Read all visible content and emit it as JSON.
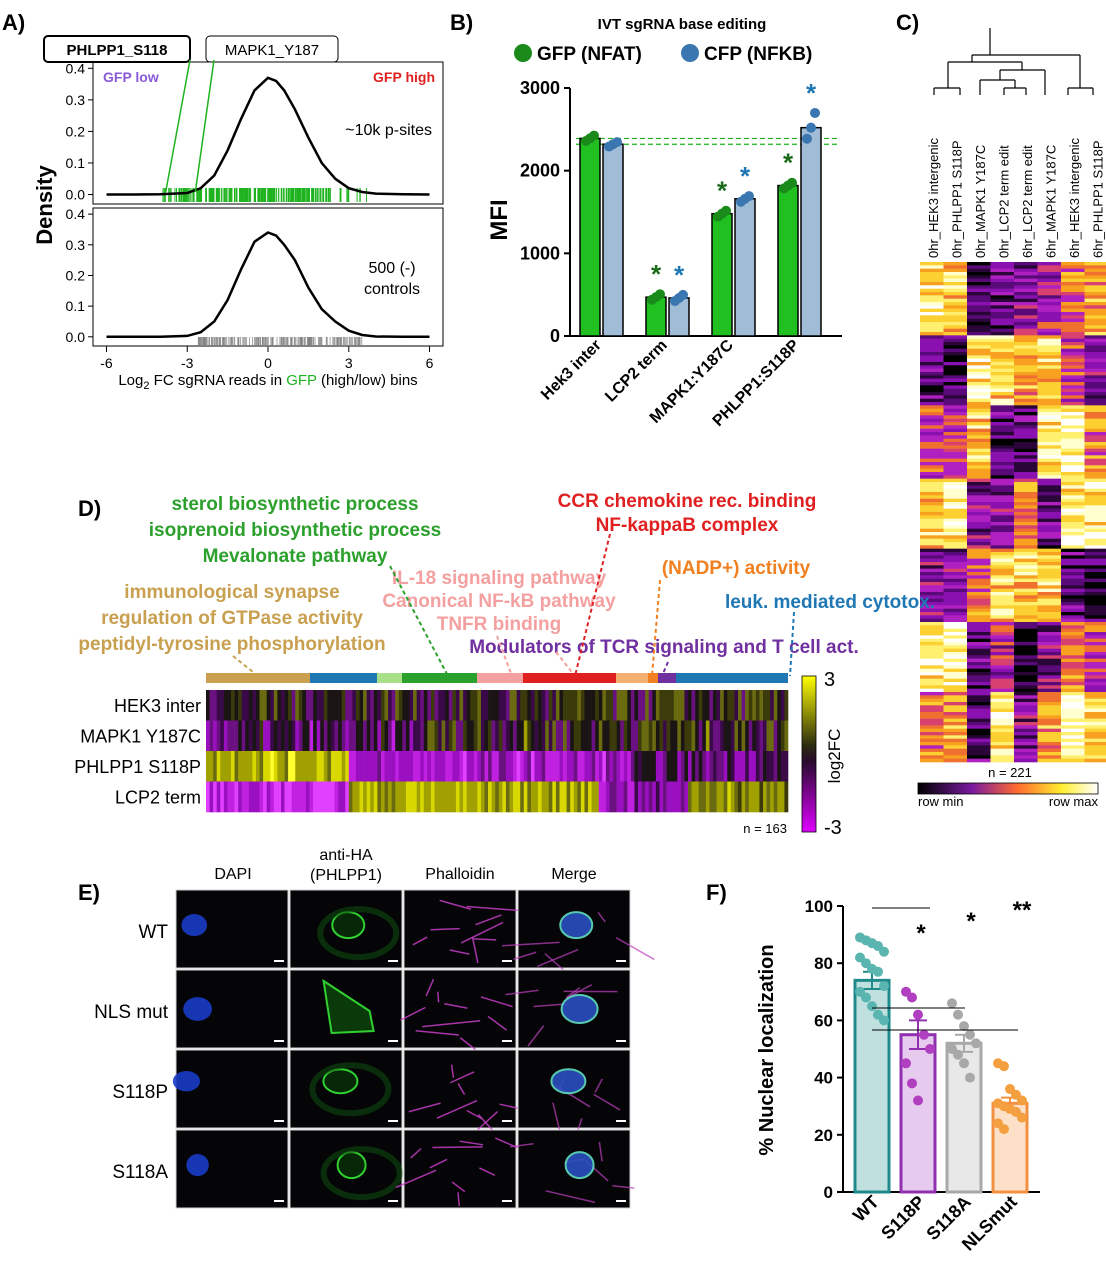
{
  "panels": {
    "a": "A)",
    "b": "B)",
    "c": "C)",
    "d": "D)",
    "e": "E)",
    "f": "F)"
  },
  "colors": {
    "green": "#1fb31f",
    "dark_green": "#1a6b1a",
    "blue": "#5a8ab8",
    "light_blue": "#9fbbd4",
    "purple": "#7030a0",
    "red": "#e02020",
    "tan": "#c8a050",
    "teal": "#1f78b4",
    "pink": "#f4a0a0",
    "orange": "#f08020",
    "wt": "#5ab4b0",
    "s118p": "#b040c0",
    "s118a": "#a8a8a8",
    "nlsmut": "#f5a040"
  },
  "chart_data": [
    {
      "id": "A_top",
      "type": "line",
      "title": "",
      "ylabel": "Density",
      "xlabel_prefix": "Log",
      "xlabel_sub": "2",
      "xlabel_mid": " FC sgRNA reads in ",
      "xlabel_green": "GFP",
      "xlabel_suffix": " (high/low) bins",
      "x": [
        -6,
        -5,
        -4,
        -3,
        -2.5,
        -2,
        -1.5,
        -1,
        -0.5,
        0,
        0.3,
        0.6,
        1,
        1.5,
        2,
        2.5,
        3,
        3.5,
        4,
        5,
        6
      ],
      "y": [
        0,
        0,
        0.001,
        0.005,
        0.02,
        0.06,
        0.14,
        0.24,
        0.33,
        0.37,
        0.36,
        0.33,
        0.27,
        0.18,
        0.1,
        0.05,
        0.02,
        0.008,
        0.003,
        0.001,
        0
      ],
      "xlim": [
        -6.5,
        6.5
      ],
      "ylim": [
        -0.03,
        0.42
      ],
      "yticks": [
        "0.0",
        "0.1",
        "0.2",
        "0.3",
        "0.4"
      ],
      "annotations": {
        "low": "GFP low",
        "high": "GFP high",
        "count": "~10k p-sites"
      },
      "callouts": [
        "PHLPP1_S118",
        "MAPK1_Y187"
      ],
      "callout_x": [
        -3.8,
        -2.7
      ],
      "rug_color": "#1fb31f"
    },
    {
      "id": "A_bottom",
      "type": "line",
      "x": [
        -6,
        -5,
        -4,
        -3,
        -2.5,
        -2,
        -1.5,
        -1,
        -0.5,
        0,
        0.3,
        0.6,
        1,
        1.5,
        2,
        2.5,
        3,
        3.5,
        4,
        5,
        6
      ],
      "y": [
        0,
        0,
        0,
        0.003,
        0.015,
        0.05,
        0.12,
        0.22,
        0.31,
        0.34,
        0.33,
        0.3,
        0.25,
        0.16,
        0.09,
        0.05,
        0.02,
        0.006,
        0.001,
        0,
        0
      ],
      "xlim": [
        -6.5,
        6.5
      ],
      "ylim": [
        -0.03,
        0.42
      ],
      "yticks": [
        "0.0",
        "0.1",
        "0.2",
        "0.3",
        "0.4"
      ],
      "xticks": [
        "-6",
        "-3",
        "0",
        "3",
        "6"
      ],
      "annotations": {
        "line1": "500 (-)",
        "line2": "controls"
      },
      "rug_color": "#808080"
    },
    {
      "id": "B",
      "type": "bar",
      "title": "IVT sgRNA base editing",
      "legend": [
        "GFP (NFAT)",
        "CFP (NFKB)"
      ],
      "ylabel": "MFI",
      "categories": [
        "Hek3 inter",
        "LCP2 term",
        "MAPK1:Y187C",
        "PHLPP1:S118P"
      ],
      "series": [
        {
          "name": "GFP (NFAT)",
          "values": [
            2390,
            470,
            1480,
            1820
          ],
          "sig": [
            false,
            true,
            true,
            true
          ]
        },
        {
          "name": "CFP (NFKB)",
          "values": [
            2320,
            460,
            1660,
            2520
          ],
          "sig": [
            false,
            true,
            true,
            true
          ]
        }
      ],
      "star": "*",
      "ylim": [
        0,
        3000
      ],
      "yticks": [
        "0",
        "1000",
        "2000",
        "3000"
      ],
      "ref_lines": [
        2390,
        2320
      ]
    },
    {
      "id": "C",
      "type": "heatmap",
      "columns": [
        "0hr_HEK3 intergenic",
        "0hr_PHLPP1 S118P",
        "0hr_MAPK1 Y187C",
        "0hr_LCP2 term edit",
        "6hr_LCP2 term edit",
        "6hr_MAPK1 Y187C",
        "6hr_HEK3 intergenic",
        "6hr_PHLPP1 S118P"
      ],
      "n_label": "n = 221",
      "scale_min": "row min",
      "scale_max": "row max"
    },
    {
      "id": "D",
      "type": "heatmap",
      "rows": [
        "HEK3 inter",
        "MAPK1 Y187C",
        "PHLPP1 S118P",
        "LCP2 term"
      ],
      "n_label": "n = 163",
      "scale_label": "log2FC",
      "scale_max": "3",
      "scale_min": "-3",
      "go_terms": [
        {
          "lines": [
            "sterol biosynthetic process",
            "isoprenoid biosynthetic process",
            "Mevalonate pathway"
          ],
          "color": "#2ca02c"
        },
        {
          "lines": [
            "CCR chemokine rec. binding",
            "NF-kappaB complex"
          ],
          "color": "#e02020"
        },
        {
          "lines": [
            "immunological synapse",
            "regulation of GTPase activity",
            "peptidyl-tyrosine phosphorylation"
          ],
          "color": "#c8a050"
        },
        {
          "lines": [
            "IL-18 signaling pathway",
            "Canonical NF-kB pathway",
            "TNFR binding"
          ],
          "color": "#f4a0a0"
        },
        {
          "lines": [
            "(NADP+) activity"
          ],
          "color": "#f08020"
        },
        {
          "lines": [
            "leuk. mediated cytotox."
          ],
          "color": "#1f78b4"
        },
        {
          "lines": [
            "Modulators of TCR signaling and T cell act."
          ],
          "color": "#7030a0"
        }
      ]
    },
    {
      "id": "F",
      "type": "bar",
      "ylabel": "% Nuclear localization",
      "categories": [
        "WT",
        "S118P",
        "S118A",
        "NLSmut"
      ],
      "values": [
        74,
        55,
        52,
        31
      ],
      "errors": [
        3,
        5,
        3,
        2
      ],
      "points": [
        [
          89,
          88,
          87,
          86,
          84,
          82,
          80,
          78,
          77,
          72,
          70,
          68,
          65,
          62,
          60
        ],
        [
          70,
          68,
          62,
          55,
          50,
          45,
          38,
          32
        ],
        [
          66,
          62,
          58,
          55,
          52,
          50,
          48,
          45,
          40
        ],
        [
          45,
          44,
          36,
          34,
          32,
          31,
          30,
          29,
          28,
          26,
          24,
          22
        ]
      ],
      "ylim": [
        0,
        100
      ],
      "yticks": [
        "0",
        "20",
        "40",
        "60",
        "80",
        "100"
      ],
      "significance": [
        "*",
        "*",
        "**"
      ]
    }
  ],
  "panel_e": {
    "columns": [
      "DAPI",
      "anti-HA",
      "(PHLPP1)",
      "Phalloidin",
      "Merge"
    ],
    "rows": [
      "WT",
      "NLS mut",
      "S118P",
      "S118A"
    ]
  }
}
